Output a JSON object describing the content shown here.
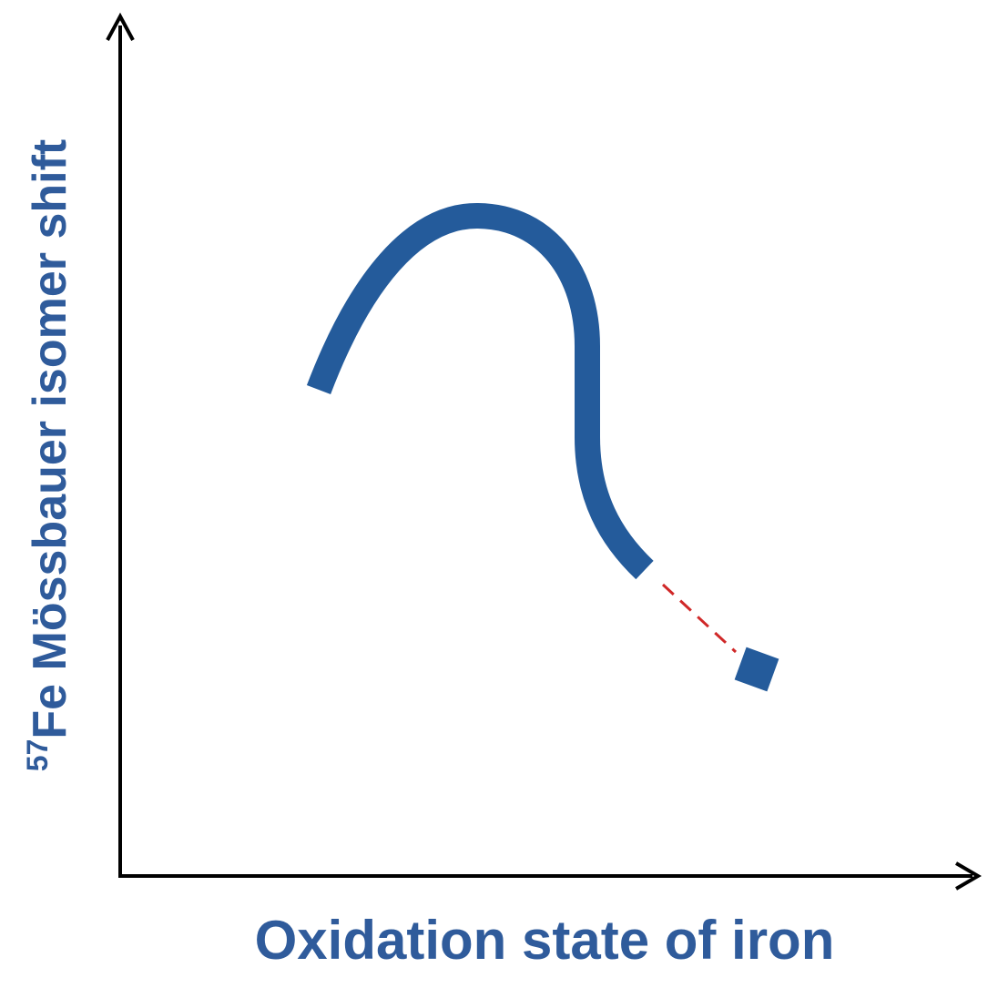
{
  "x_axis": {
    "label": "Oxidation state of iron"
  },
  "y_axis": {
    "label_superscript": "57",
    "label": "Fe Mössbauer isomer shift"
  }
}
